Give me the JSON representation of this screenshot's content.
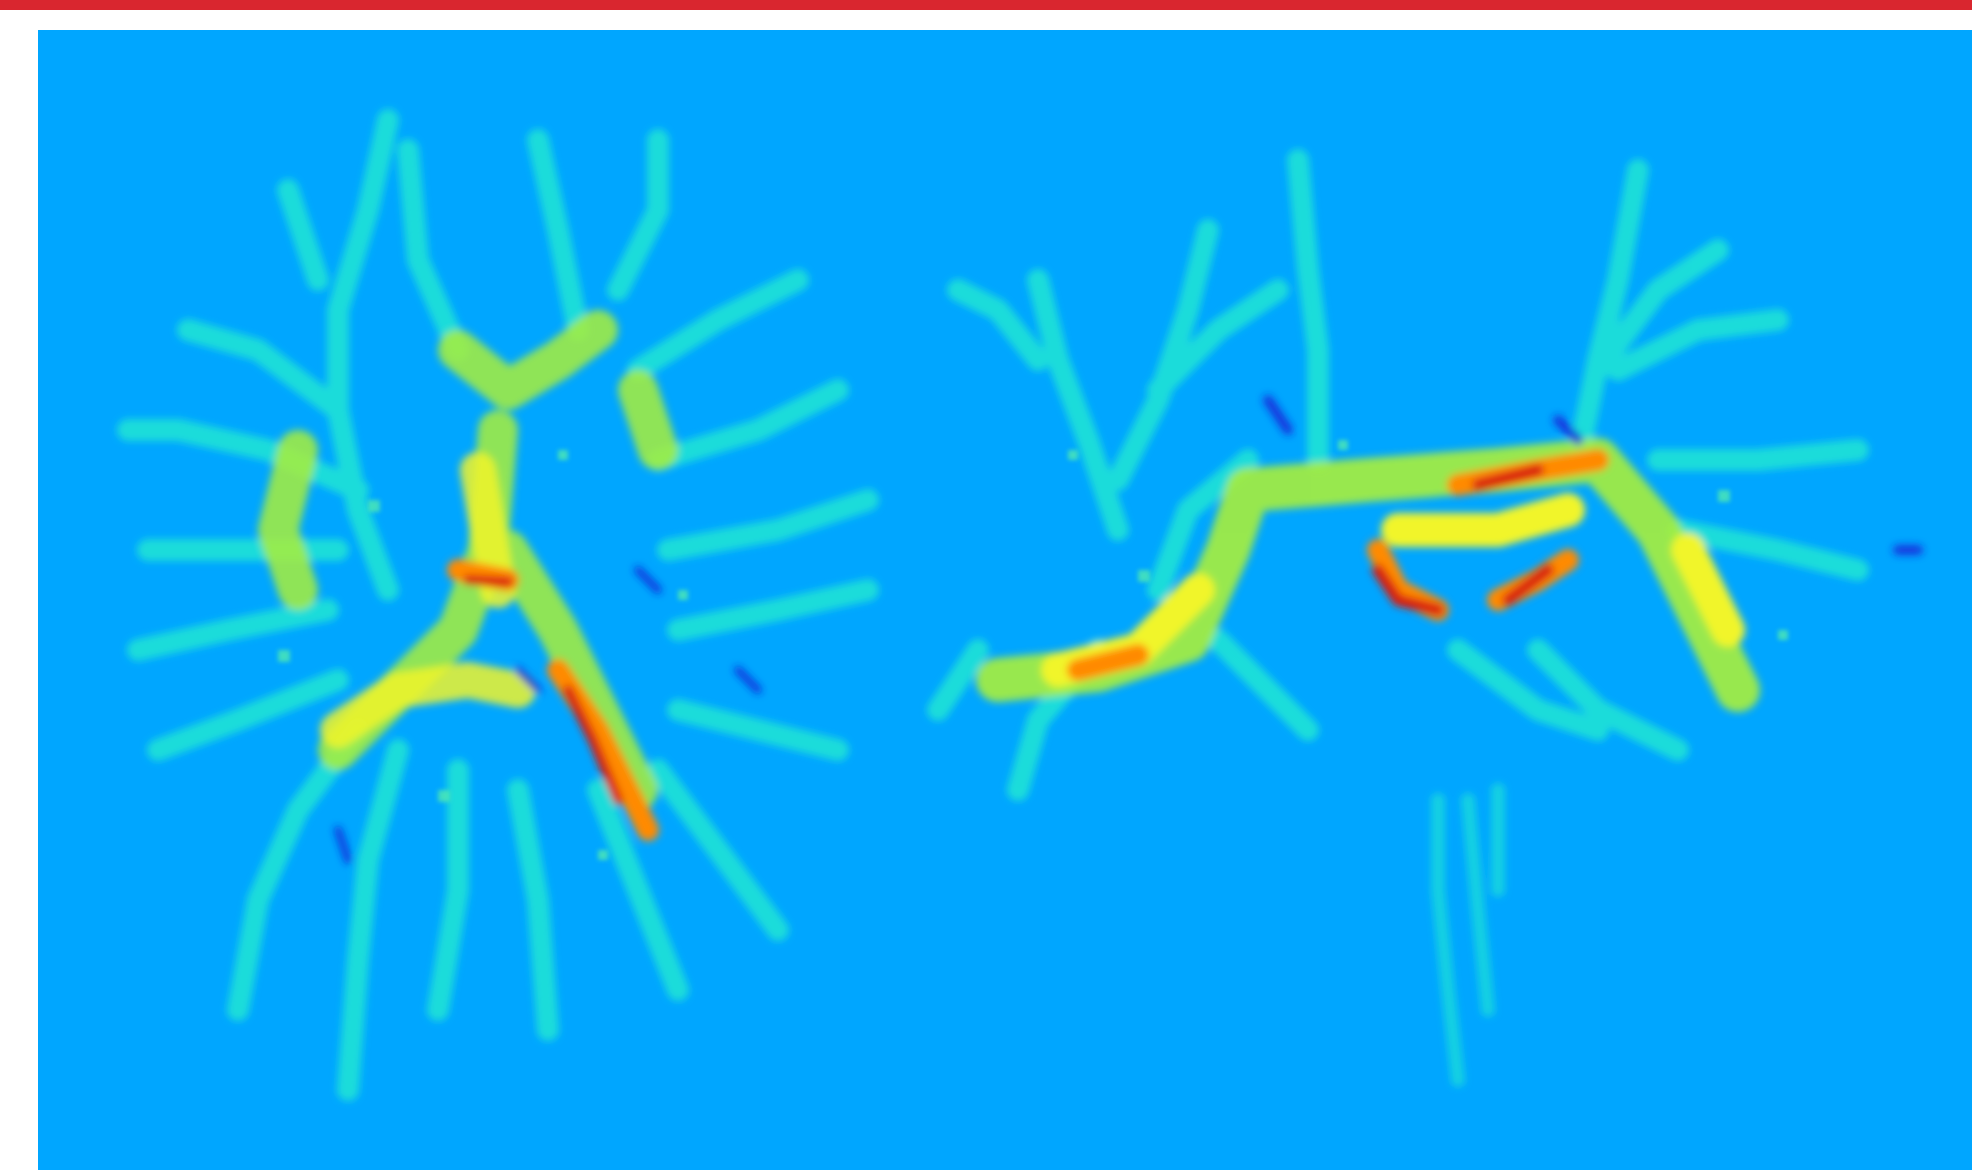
{
  "top_bar": {
    "color": "#d9262f"
  },
  "image_viewer": {
    "content": "brain-white-matter-colormap-slices",
    "colormap": "jet",
    "background_color": "#00a6ff",
    "panels": [
      "axial-slice",
      "coronal-slice"
    ]
  }
}
